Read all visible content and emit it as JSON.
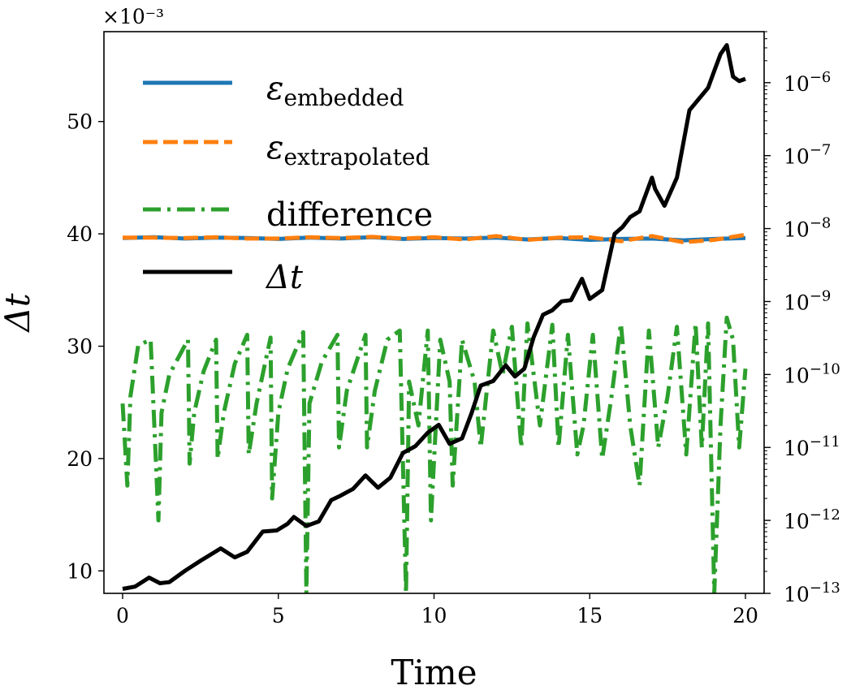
{
  "chart_data": {
    "type": "line",
    "xlabel": "Time",
    "ylabel": "Δt",
    "y_multiplier": "×10⁻³",
    "xlim": [
      -0.6,
      20.6
    ],
    "ylim": [
      8.0,
      58.0
    ],
    "y2lim": [
      1e-13,
      5e-06
    ],
    "y2scale": "log",
    "x_ticks": [
      0,
      5,
      10,
      15,
      20
    ],
    "y_ticks": [
      10,
      20,
      30,
      40,
      50
    ],
    "y2_ticks": [
      {
        "value": 1e-13,
        "label": "10",
        "exp": "−13"
      },
      {
        "value": 1e-12,
        "label": "10",
        "exp": "−12"
      },
      {
        "value": 1e-11,
        "label": "10",
        "exp": "−11"
      },
      {
        "value": 1e-10,
        "label": "10",
        "exp": "−10"
      },
      {
        "value": 1e-09,
        "label": "10",
        "exp": "−9"
      },
      {
        "value": 1e-08,
        "label": "10",
        "exp": "−8"
      },
      {
        "value": 1e-07,
        "label": "10",
        "exp": "−7"
      },
      {
        "value": 1e-06,
        "label": "10",
        "exp": "−6"
      }
    ],
    "legend_placement": "top-left",
    "series": [
      {
        "name": "ε",
        "sub": "embedded",
        "axis": "right",
        "color": "#1f77b4",
        "style": "solid",
        "x": [
          0,
          1,
          2,
          3,
          4,
          5,
          6,
          7,
          8,
          9,
          10,
          11,
          12,
          13,
          14,
          15,
          16,
          17,
          18,
          19,
          20
        ],
        "y": [
          7.4e-09,
          7.6e-09,
          7.3e-09,
          7.5e-09,
          7.4e-09,
          7.2e-09,
          7.5e-09,
          7.3e-09,
          7.6e-09,
          7.2e-09,
          7.4e-09,
          7.3e-09,
          7.5e-09,
          7.1e-09,
          7.4e-09,
          7e-09,
          7.2e-09,
          7.3e-09,
          6.9e-09,
          7.2e-09,
          7.4e-09
        ]
      },
      {
        "name": "ε",
        "sub": "extrapolated",
        "axis": "right",
        "color": "#ff7f0e",
        "style": "dashed",
        "x": [
          0,
          1,
          2,
          3,
          4,
          5,
          6,
          7,
          8,
          9,
          10,
          11,
          12,
          13,
          14,
          15,
          16,
          17,
          18,
          19,
          20
        ],
        "y": [
          7.5e-09,
          7.5e-09,
          7.4e-09,
          7.6e-09,
          7.3e-09,
          7.3e-09,
          7.6e-09,
          7.4e-09,
          7.7e-09,
          7.3e-09,
          7.6e-09,
          7.1e-09,
          7.9e-09,
          7e-09,
          7.5e-09,
          7.6e-09,
          6.7e-09,
          7.9e-09,
          6.5e-09,
          7e-09,
          8.2e-09
        ]
      },
      {
        "name": "difference",
        "axis": "right",
        "color": "#2ca02c",
        "style": "dashdot",
        "x": [
          0,
          0.15,
          0.25,
          0.5,
          0.9,
          1.15,
          1.25,
          1.5,
          2.1,
          2.15,
          2.3,
          2.6,
          3.0,
          3.05,
          3.25,
          3.6,
          4.0,
          4.05,
          4.3,
          4.75,
          4.8,
          5.0,
          5.3,
          5.8,
          5.9,
          6.0,
          6.4,
          6.9,
          6.95,
          7.2,
          7.8,
          7.85,
          8.1,
          8.5,
          8.9,
          9.1,
          9.2,
          9.5,
          9.8,
          9.9,
          10.2,
          10.5,
          10.6,
          10.9,
          11.3,
          11.5,
          11.9,
          12.2,
          12.5,
          12.8,
          13.0,
          13.4,
          13.8,
          14.0,
          14.3,
          14.6,
          14.8,
          15.1,
          15.4,
          15.7,
          16.0,
          16.3,
          16.6,
          16.9,
          17.2,
          17.5,
          17.8,
          18.1,
          18.4,
          18.6,
          18.8,
          19.0,
          19.2,
          19.4,
          19.6,
          19.8,
          20.0
        ],
        "y": [
          4e-11,
          3e-12,
          5e-11,
          2.5e-10,
          3e-10,
          1e-12,
          3e-11,
          1e-10,
          3e-10,
          6e-12,
          3e-11,
          1.1e-10,
          3e-10,
          7e-12,
          3e-11,
          1.4e-10,
          3.5e-10,
          8e-12,
          4e-11,
          3.2e-10,
          2e-12,
          3e-11,
          1.2e-10,
          3.8e-10,
          1e-13,
          4e-11,
          1.5e-10,
          3.5e-10,
          1e-11,
          6e-11,
          3.5e-10,
          1e-11,
          6e-11,
          3e-10,
          4e-10,
          1e-13,
          8e-11,
          2e-11,
          4e-10,
          1e-12,
          3e-10,
          8e-11,
          3e-12,
          3e-10,
          8e-11,
          1e-11,
          4e-10,
          1e-10,
          4.5e-10,
          1e-11,
          5e-10,
          2e-11,
          4.8e-10,
          1e-11,
          3.5e-10,
          8e-12,
          2e-11,
          3.5e-10,
          7e-12,
          5e-11,
          5e-10,
          2e-11,
          3e-12,
          4e-10,
          1e-11,
          5e-11,
          4.5e-10,
          8e-12,
          5e-10,
          1e-11,
          5e-10,
          1e-13,
          2e-11,
          6e-10,
          3e-10,
          1e-11,
          1.2e-10
        ]
      },
      {
        "name": "Δt",
        "axis": "left",
        "color": "#000000",
        "style": "solid",
        "x": [
          0,
          0.4,
          0.85,
          1.2,
          1.5,
          2.0,
          2.5,
          3.15,
          3.6,
          4.0,
          4.5,
          4.95,
          5.3,
          5.5,
          5.9,
          6.3,
          6.7,
          7.0,
          7.4,
          7.8,
          8.2,
          8.6,
          9.0,
          9.4,
          9.8,
          10.15,
          10.5,
          10.9,
          11.2,
          11.5,
          11.9,
          12.3,
          12.6,
          12.9,
          13.2,
          13.5,
          13.8,
          14.1,
          14.4,
          14.75,
          15.0,
          15.4,
          15.8,
          16.05,
          16.3,
          16.6,
          17.0,
          17.1,
          17.4,
          17.8,
          18.2,
          18.5,
          18.8,
          19.0,
          19.2,
          19.4,
          19.6,
          19.8,
          20.0
        ],
        "y": [
          8.4,
          8.6,
          9.4,
          8.9,
          9.0,
          10.0,
          10.9,
          12.0,
          11.2,
          11.7,
          13.5,
          13.6,
          14.2,
          14.8,
          14.0,
          14.4,
          16.3,
          16.7,
          17.3,
          18.5,
          17.4,
          18.3,
          20.5,
          21.1,
          22.3,
          23.0,
          21.3,
          21.8,
          24.0,
          26.5,
          26.9,
          28.3,
          27.3,
          28.0,
          30.8,
          32.8,
          33.2,
          34.0,
          34.1,
          36.0,
          34.2,
          35.0,
          40.0,
          40.6,
          41.5,
          42.0,
          45.0,
          44.0,
          42.5,
          45.0,
          51.0,
          52.0,
          53.0,
          54.5,
          56.0,
          56.8,
          54.0,
          53.6,
          53.8
        ]
      }
    ]
  }
}
